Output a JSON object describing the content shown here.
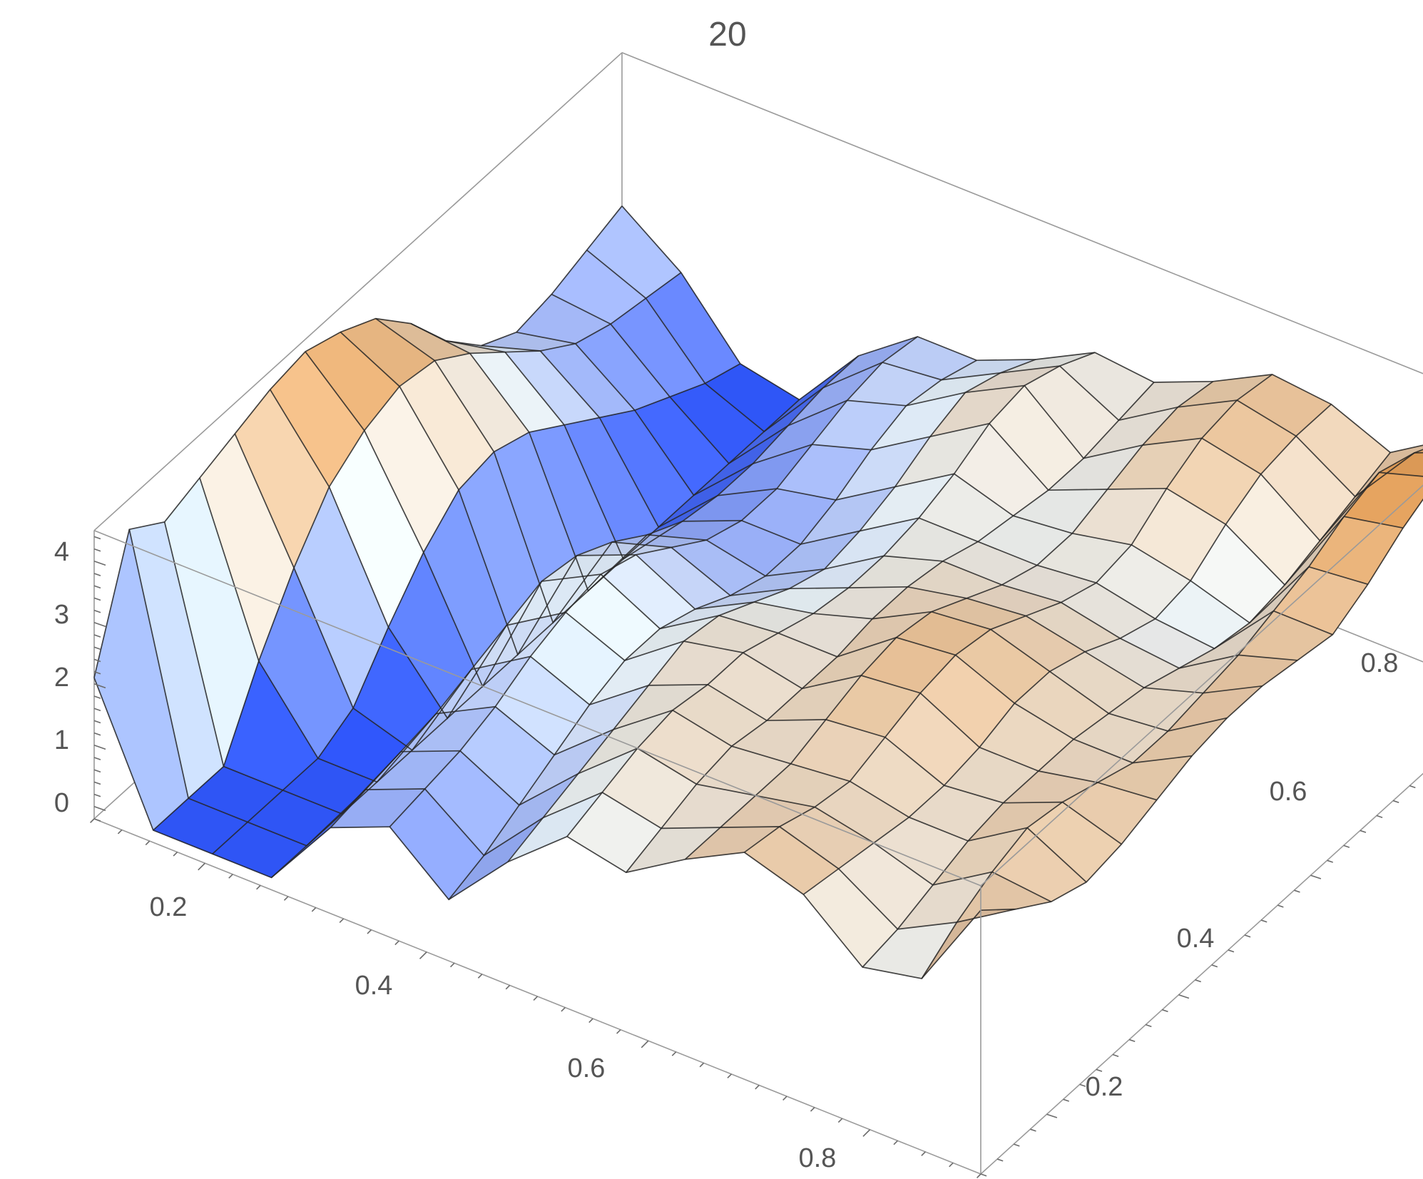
{
  "chart_data": {
    "type": "surface3d",
    "title": "20",
    "x_axis": {
      "range": [
        0.1,
        0.9
      ],
      "tick_labels": [
        "0.2",
        "0.4",
        "0.6",
        "0.8"
      ],
      "ticks": [
        0.2,
        0.4,
        0.6,
        0.8
      ]
    },
    "y_axis": {
      "range": [
        0.1,
        0.9
      ],
      "tick_labels": [
        "0.2",
        "0.4",
        "0.6",
        "0.8"
      ],
      "ticks": [
        0.2,
        0.4,
        0.6,
        0.8
      ]
    },
    "z_axis": {
      "range": [
        -0.2,
        4.5
      ],
      "tick_labels": [
        "0",
        "1",
        "2",
        "3",
        "4"
      ],
      "ticks": [
        0,
        1,
        2,
        3,
        4
      ]
    },
    "colors": {
      "low": "#2f55f5",
      "mid": "#e9f4fb",
      "high": "#e49a4f",
      "mesh": "#262626",
      "box": "#9a9a9a"
    },
    "mesh_lines": 16,
    "grid_x": [
      0.1,
      0.1533,
      0.2067,
      0.26,
      0.3133,
      0.3667,
      0.42,
      0.4733,
      0.5267,
      0.58,
      0.6333,
      0.6867,
      0.74,
      0.7933,
      0.8467,
      0.9
    ],
    "grid_y": [
      0.1,
      0.1533,
      0.2067,
      0.26,
      0.3133,
      0.3667,
      0.42,
      0.4733,
      0.5267,
      0.58,
      0.6333,
      0.6867,
      0.74,
      0.7933,
      0.8467,
      0.9
    ],
    "z_values": [
      [
        2.1,
        0.0,
        0.0,
        0.0,
        1.2,
        1.6,
        0.8,
        1.8,
        2.6,
        2.4,
        3.0,
        3.5,
        3.2,
        2.4,
        2.6,
        4.1
      ],
      [
        4.0,
        0.0,
        0.0,
        0.0,
        1.3,
        1.7,
        1.0,
        2.0,
        2.8,
        2.6,
        3.0,
        3.4,
        3.1,
        2.5,
        3.0,
        3.6
      ],
      [
        3.6,
        0.0,
        0.0,
        0.0,
        1.4,
        1.8,
        1.3,
        2.2,
        3.0,
        2.8,
        3.0,
        3.2,
        3.0,
        2.7,
        3.3,
        3.2
      ],
      [
        3.8,
        1.2,
        0.0,
        0.0,
        1.5,
        2.0,
        1.6,
        2.4,
        3.1,
        2.9,
        3.0,
        3.1,
        2.9,
        2.9,
        3.5,
        3.0
      ],
      [
        4.0,
        2.2,
        0.3,
        0.0,
        1.7,
        2.3,
        1.9,
        2.6,
        3.0,
        2.8,
        3.2,
        3.3,
        2.9,
        3.0,
        3.4,
        3.1
      ],
      [
        4.2,
        3.0,
        1.1,
        0.0,
        1.9,
        2.5,
        2.1,
        2.8,
        3.0,
        2.8,
        3.4,
        3.5,
        3.0,
        3.0,
        3.2,
        3.3
      ],
      [
        4.3,
        3.4,
        1.8,
        0.0,
        2.1,
        2.6,
        2.1,
        2.7,
        2.8,
        2.8,
        3.5,
        3.6,
        3.2,
        3.0,
        3.0,
        3.5
      ],
      [
        4.1,
        3.6,
        2.3,
        0.0,
        2.0,
        2.4,
        1.9,
        2.4,
        2.6,
        2.9,
        3.4,
        3.5,
        3.2,
        2.9,
        3.0,
        3.6
      ],
      [
        3.8,
        3.5,
        2.4,
        0.0,
        1.7,
        2.0,
        1.6,
        2.1,
        2.5,
        2.9,
        3.1,
        3.2,
        3.0,
        2.8,
        3.1,
        3.6
      ],
      [
        3.2,
        3.1,
        2.2,
        0.0,
        1.3,
        1.6,
        1.4,
        1.9,
        2.5,
        2.8,
        2.8,
        2.9,
        2.7,
        2.6,
        3.2,
        3.5
      ],
      [
        2.4,
        2.6,
        1.8,
        0.0,
        1.0,
        1.4,
        1.4,
        2.0,
        2.6,
        2.6,
        2.6,
        2.7,
        2.5,
        2.4,
        3.4,
        3.4
      ],
      [
        1.8,
        2.1,
        1.4,
        0.0,
        0.9,
        1.4,
        1.6,
        2.2,
        2.8,
        2.5,
        2.6,
        2.8,
        2.6,
        2.3,
        3.6,
        3.7
      ],
      [
        1.5,
        1.7,
        1.0,
        0.0,
        0.9,
        1.6,
        1.9,
        2.5,
        3.1,
        2.4,
        2.8,
        3.2,
        3.0,
        2.4,
        3.9,
        4.1
      ],
      [
        1.6,
        1.5,
        0.7,
        0.0,
        1.0,
        1.8,
        2.1,
        2.7,
        3.2,
        2.4,
        3.0,
        3.5,
        3.3,
        2.6,
        4.1,
        4.4
      ],
      [
        1.8,
        1.4,
        0.4,
        0.0,
        1.1,
        1.9,
        2.0,
        2.5,
        3.0,
        2.5,
        3.1,
        3.6,
        3.4,
        2.8,
        3.9,
        4.3
      ],
      [
        2.0,
        1.3,
        0.2,
        0.0,
        1.1,
        1.8,
        1.8,
        2.2,
        2.7,
        2.6,
        3.0,
        3.5,
        3.4,
        3.0,
        3.6,
        4.0
      ]
    ]
  }
}
